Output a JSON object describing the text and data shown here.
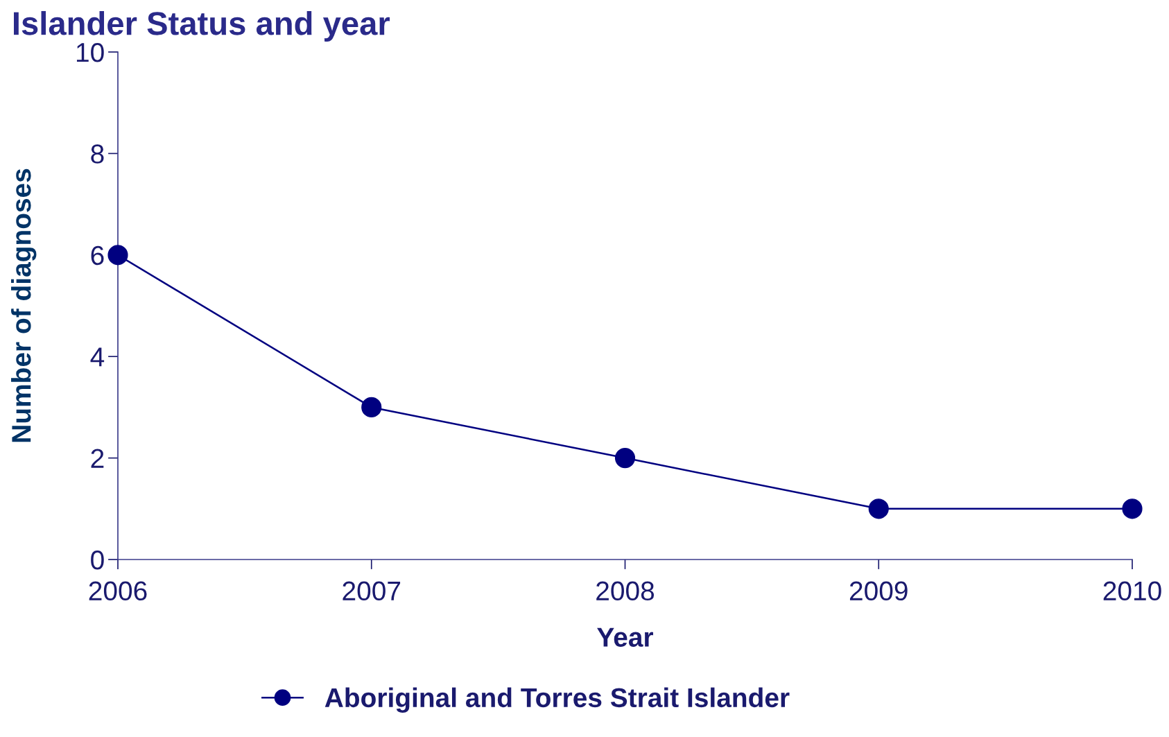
{
  "chart_data": {
    "type": "line",
    "title": "Islander Status and year",
    "xlabel": "Year",
    "ylabel": "Number of diagnoses",
    "x": [
      2006,
      2007,
      2008,
      2009,
      2010
    ],
    "series": [
      {
        "name": "Aboriginal and Torres Strait Islander",
        "color": "#000080",
        "values": [
          6,
          3,
          2,
          1,
          1
        ]
      }
    ],
    "xlim": [
      2006,
      2010
    ],
    "xticks": [
      2006,
      2007,
      2008,
      2009,
      2010
    ],
    "ylim": [
      0,
      10
    ],
    "yticks": [
      0,
      2,
      4,
      6,
      8,
      10
    ],
    "grid": false,
    "legend": "bottom",
    "marker": "circle",
    "line_style": "solid"
  }
}
